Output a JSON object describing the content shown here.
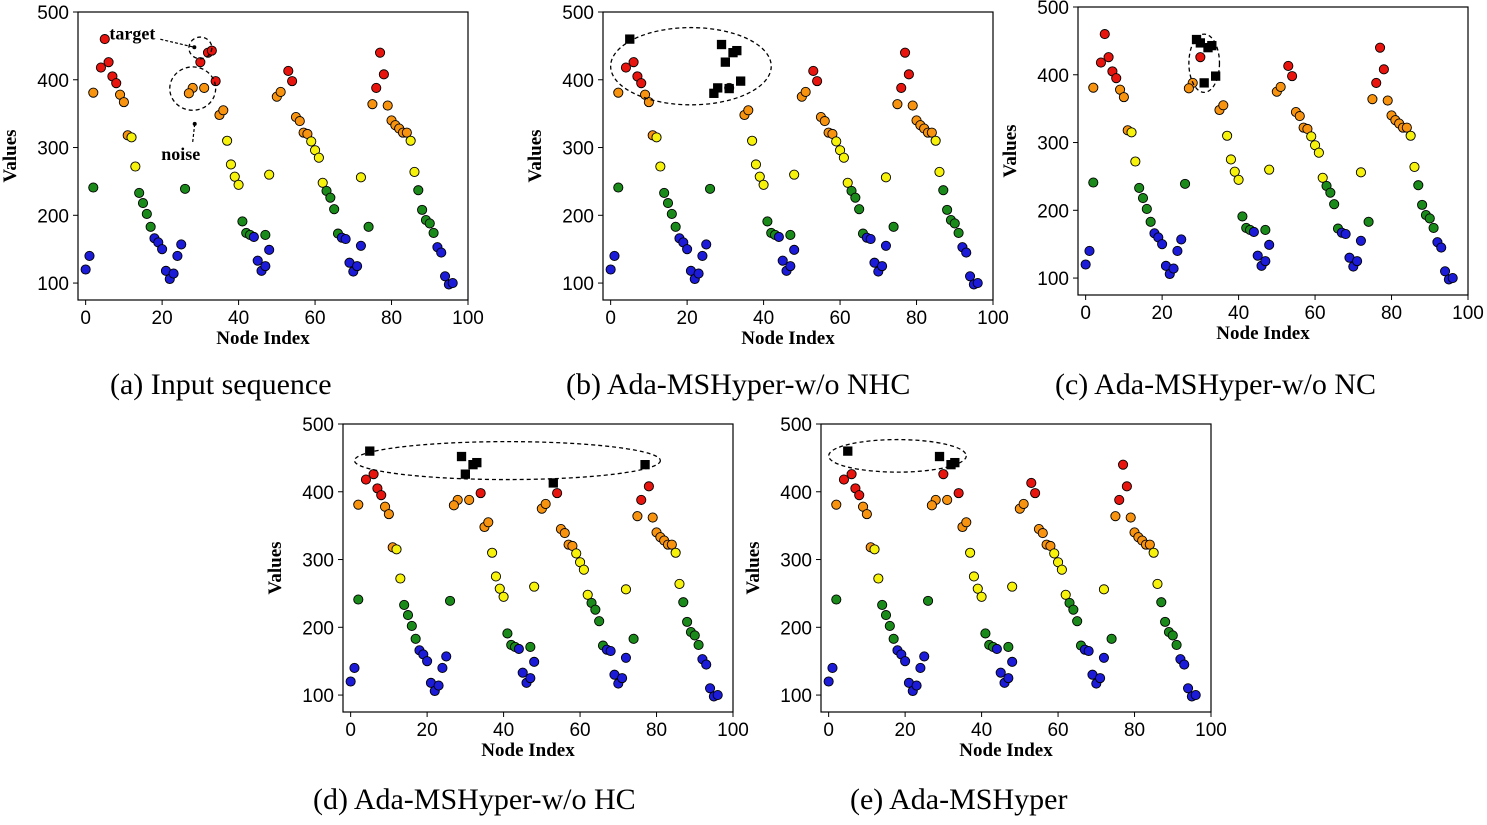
{
  "chart_data": [
    {
      "type": "scatter",
      "caption": "(a) Input sequence",
      "xlabel": "Node Index",
      "ylabel": "Values",
      "xlim": [
        -2,
        100
      ],
      "ylim": [
        75,
        500
      ],
      "xticks": [
        0,
        20,
        40,
        60,
        80,
        100
      ],
      "yticks": [
        100,
        200,
        300,
        400,
        500
      ],
      "annotations": [
        {
          "text": "target",
          "target_x": 30,
          "target_y": 445
        },
        {
          "text": "noise",
          "target_x": 28,
          "target_y": 385
        }
      ],
      "target_points": [],
      "ellipse": {
        "cx": 30,
        "cy": 447,
        "rx": 3,
        "ry": 16
      },
      "ellipse2": {
        "cx": 28,
        "cy": 387,
        "rx": 6,
        "ry": 32
      }
    },
    {
      "type": "scatter",
      "caption": "(b) Ada-MSHyper-w/o NHC",
      "xlabel": "Node Index",
      "ylabel": "Values",
      "xlim": [
        -2,
        100
      ],
      "ylim": [
        75,
        500
      ],
      "xticks": [
        0,
        20,
        40,
        60,
        80,
        100
      ],
      "yticks": [
        100,
        200,
        300,
        400,
        500
      ],
      "annotations": [],
      "target_points": [
        [
          5,
          460
        ],
        [
          29,
          452
        ],
        [
          30,
          426
        ],
        [
          32,
          440
        ],
        [
          33,
          443
        ],
        [
          34,
          398
        ],
        [
          28,
          388
        ],
        [
          31,
          387
        ],
        [
          27,
          380
        ]
      ],
      "ellipse": {
        "cx": 21,
        "cy": 420,
        "rx": 21,
        "ry": 57
      }
    },
    {
      "type": "scatter",
      "caption": "(c) Ada-MSHyper-w/o NC",
      "xlabel": "Node Index",
      "ylabel": "Values",
      "xlim": [
        -2,
        100
      ],
      "ylim": [
        75,
        500
      ],
      "xticks": [
        0,
        20,
        40,
        60,
        80,
        100
      ],
      "yticks": [
        100,
        200,
        300,
        400,
        500
      ],
      "annotations": [],
      "target_points": [
        [
          29,
          452
        ],
        [
          30,
          447
        ],
        [
          32,
          440
        ],
        [
          33,
          443
        ],
        [
          31,
          388
        ],
        [
          34,
          398
        ]
      ],
      "ellipse": {
        "cx": 31,
        "cy": 417,
        "rx": 4,
        "ry": 43
      }
    },
    {
      "type": "scatter",
      "caption": "(d) Ada-MSHyper-w/o HC",
      "xlabel": "Node Index",
      "ylabel": "Values",
      "xlim": [
        -2,
        100
      ],
      "ylim": [
        75,
        500
      ],
      "xticks": [
        0,
        20,
        40,
        60,
        80,
        100
      ],
      "yticks": [
        100,
        200,
        300,
        400,
        500
      ],
      "annotations": [],
      "target_points": [
        [
          5,
          460
        ],
        [
          29,
          452
        ],
        [
          30,
          426
        ],
        [
          32,
          440
        ],
        [
          33,
          443
        ],
        [
          53,
          413
        ],
        [
          77,
          440
        ]
      ],
      "ellipse": {
        "cx": 41,
        "cy": 446,
        "rx": 40,
        "ry": 28
      }
    },
    {
      "type": "scatter",
      "caption": "(e) Ada-MSHyper",
      "xlabel": "Node Index",
      "ylabel": "Values",
      "xlim": [
        -2,
        100
      ],
      "ylim": [
        75,
        500
      ],
      "xticks": [
        0,
        20,
        40,
        60,
        80,
        100
      ],
      "yticks": [
        100,
        200,
        300,
        400,
        500
      ],
      "annotations": [],
      "target_points": [
        [
          5,
          460
        ],
        [
          29,
          452
        ],
        [
          32,
          440
        ],
        [
          33,
          443
        ]
      ],
      "ellipse": {
        "cx": 18,
        "cy": 453,
        "rx": 18,
        "ry": 24
      }
    }
  ],
  "base_series": {
    "red": [
      [
        4,
        418
      ],
      [
        5,
        460
      ],
      [
        6,
        426
      ],
      [
        7,
        405
      ],
      [
        8,
        395
      ],
      [
        30,
        426
      ],
      [
        32,
        440
      ],
      [
        33,
        443
      ],
      [
        34,
        398
      ],
      [
        53,
        413
      ],
      [
        54,
        398
      ],
      [
        77,
        440
      ],
      [
        78,
        408
      ],
      [
        76,
        388
      ]
    ],
    "orange": [
      [
        2,
        381
      ],
      [
        9,
        378
      ],
      [
        10,
        367
      ],
      [
        11,
        318
      ],
      [
        28,
        388
      ],
      [
        27,
        380
      ],
      [
        31,
        388
      ],
      [
        35,
        348
      ],
      [
        36,
        355
      ],
      [
        50,
        375
      ],
      [
        51,
        382
      ],
      [
        55,
        345
      ],
      [
        56,
        339
      ],
      [
        57,
        322
      ],
      [
        58,
        320
      ],
      [
        75,
        364
      ],
      [
        79,
        362
      ],
      [
        80,
        340
      ],
      [
        81,
        333
      ],
      [
        82,
        328
      ],
      [
        83,
        322
      ],
      [
        84,
        322
      ]
    ],
    "yellow": [
      [
        12,
        315
      ],
      [
        13,
        272
      ],
      [
        37,
        310
      ],
      [
        38,
        275
      ],
      [
        39,
        257
      ],
      [
        40,
        245
      ],
      [
        48,
        260
      ],
      [
        59,
        309
      ],
      [
        60,
        296
      ],
      [
        61,
        285
      ],
      [
        62,
        248
      ],
      [
        72,
        256
      ],
      [
        85,
        310
      ],
      [
        86,
        264
      ]
    ],
    "green": [
      [
        2,
        241
      ],
      [
        14,
        233
      ],
      [
        15,
        218
      ],
      [
        16,
        202
      ],
      [
        17,
        183
      ],
      [
        26,
        239
      ],
      [
        41,
        191
      ],
      [
        42,
        174
      ],
      [
        43,
        171
      ],
      [
        47,
        171
      ],
      [
        63,
        236
      ],
      [
        64,
        226
      ],
      [
        65,
        209
      ],
      [
        66,
        173
      ],
      [
        74,
        183
      ],
      [
        87,
        237
      ],
      [
        88,
        208
      ],
      [
        89,
        193
      ],
      [
        90,
        188
      ],
      [
        91,
        174
      ]
    ],
    "blue": [
      [
        0,
        120
      ],
      [
        1,
        140
      ],
      [
        18,
        166
      ],
      [
        19,
        160
      ],
      [
        20,
        150
      ],
      [
        21,
        118
      ],
      [
        22,
        106
      ],
      [
        23,
        114
      ],
      [
        24,
        140
      ],
      [
        25,
        157
      ],
      [
        44,
        168
      ],
      [
        45,
        133
      ],
      [
        46,
        118
      ],
      [
        47,
        125
      ],
      [
        48,
        149
      ],
      [
        67,
        167
      ],
      [
        68,
        165
      ],
      [
        69,
        130
      ],
      [
        70,
        117
      ],
      [
        71,
        125
      ],
      [
        72,
        155
      ],
      [
        92,
        153
      ],
      [
        93,
        145
      ],
      [
        94,
        110
      ],
      [
        95,
        98
      ],
      [
        96,
        100
      ]
    ]
  },
  "colors": {
    "red": "#e8140e",
    "orange": "#f7930f",
    "yellow": "#f7f20b",
    "green": "#1a8a1a",
    "blue": "#1b1bd8",
    "target": "#000000"
  }
}
